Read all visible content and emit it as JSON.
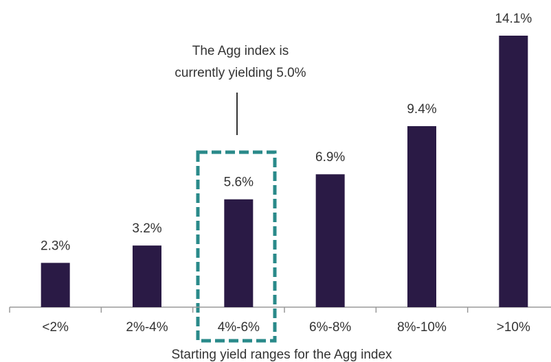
{
  "chart_data": {
    "type": "bar",
    "categories": [
      "<2%",
      "2%-4%",
      "4%-6%",
      "6%-8%",
      "8%-10%",
      ">10%"
    ],
    "values": [
      2.3,
      3.2,
      5.6,
      6.9,
      9.4,
      14.1
    ],
    "value_labels": [
      "2.3%",
      "3.2%",
      "5.6%",
      "6.9%",
      "9.4%",
      "14.1%"
    ],
    "color": "#2a1a45",
    "annotation": [
      "The Agg index is",
      "currently yielding 5.0%"
    ],
    "xlabel": "Starting yield ranges for the Agg index"
  }
}
